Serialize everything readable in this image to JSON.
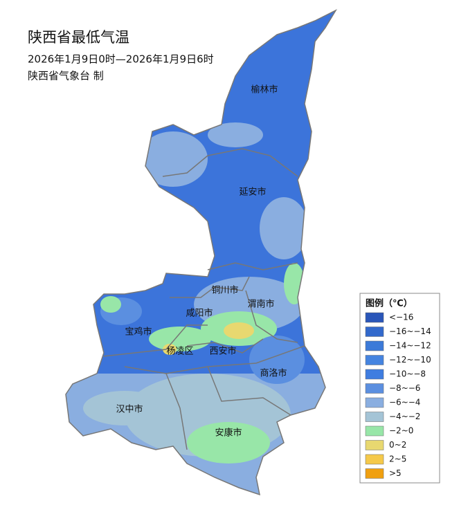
{
  "header": {
    "title": "陕西省最低气温",
    "time": "2026年1月9日0时—2026年1月9日6时",
    "producer": "陕西省气象台 制"
  },
  "cities": [
    {
      "label": "榆林市"
    },
    {
      "label": "延安市"
    },
    {
      "label": "铜川市"
    },
    {
      "label": "渭南市"
    },
    {
      "label": "咸阳市"
    },
    {
      "label": "宝鸡市"
    },
    {
      "label": "杨凌区"
    },
    {
      "label": "西安市"
    },
    {
      "label": "商洛市"
    },
    {
      "label": "汉中市"
    },
    {
      "label": "安康市"
    }
  ],
  "legend": {
    "title": "图例（℃）",
    "items": [
      {
        "label": "<−16",
        "color": "#2a56b9"
      },
      {
        "label": "−16~−14",
        "color": "#3269cc"
      },
      {
        "label": "−14~−12",
        "color": "#3c7ad8"
      },
      {
        "label": "−12~−10",
        "color": "#4584e0"
      },
      {
        "label": "−10~−8",
        "color": "#3f7de0"
      },
      {
        "label": "−8~−6",
        "color": "#5b8fe0"
      },
      {
        "label": "−6~−4",
        "color": "#8aaee0"
      },
      {
        "label": "−4~−2",
        "color": "#a4c4d6"
      },
      {
        "label": "−2~0",
        "color": "#98e6a8"
      },
      {
        "label": "0~2",
        "color": "#e8d870"
      },
      {
        "label": "2~5",
        "color": "#f5c94a"
      },
      {
        "label": ">5",
        "color": "#f0a010"
      }
    ]
  }
}
